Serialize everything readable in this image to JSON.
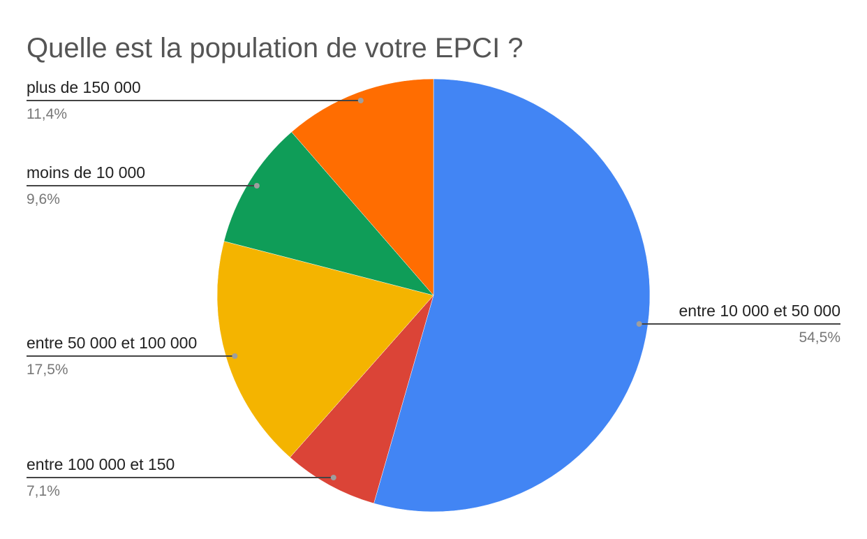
{
  "chart_data": {
    "type": "pie",
    "title": "Quelle est la population de votre EPCI ?",
    "start_angle_deg": 0,
    "direction": "clockwise",
    "legend": "none",
    "slices": [
      {
        "label": "entre 10 000 et 50 000",
        "value": 54.5,
        "percent_label": "54,5%",
        "color": "#4285f4",
        "label_side": "right"
      },
      {
        "label": "entre 100 000 et 150",
        "value": 7.1,
        "percent_label": "7,1%",
        "color": "#db4437",
        "label_side": "left"
      },
      {
        "label": "entre 50 000 et 100 000",
        "value": 17.5,
        "percent_label": "17,5%",
        "color": "#f4b400",
        "label_side": "left"
      },
      {
        "label": "moins de 10 000",
        "value": 9.6,
        "percent_label": "9,6%",
        "color": "#0f9d58",
        "label_side": "left"
      },
      {
        "label": "plus de 150 000",
        "value": 11.4,
        "percent_label": "11,4%",
        "color": "#ff6d01",
        "label_side": "left"
      }
    ]
  }
}
